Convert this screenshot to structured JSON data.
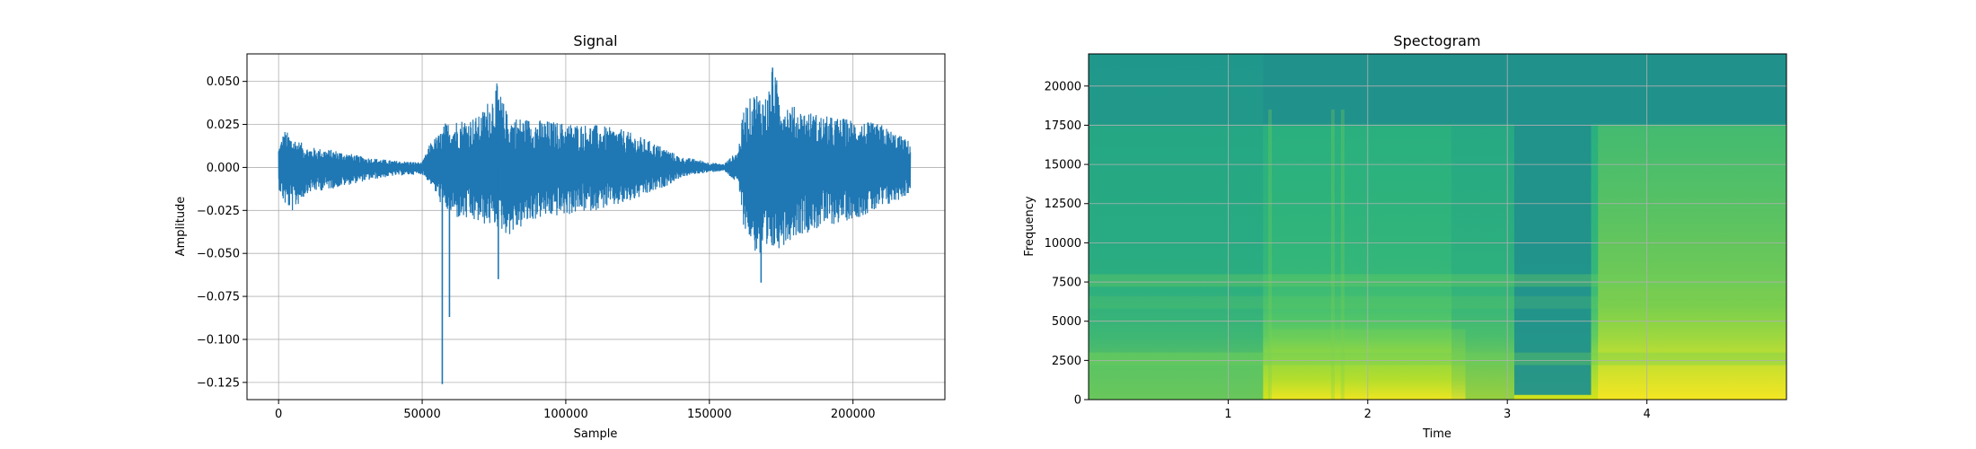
{
  "chart_data": [
    {
      "type": "line",
      "title": "Signal",
      "xlabel": "Sample",
      "ylabel": "Amplitude",
      "xlim": [
        -11000,
        232000
      ],
      "ylim": [
        -0.135,
        0.066
      ],
      "grid": true,
      "color": "#1f77b4",
      "x_ticks": [
        0,
        50000,
        100000,
        150000,
        200000
      ],
      "x_tick_labels": [
        "0",
        "50000",
        "100000",
        "150000",
        "200000"
      ],
      "y_ticks": [
        0.05,
        0.025,
        0.0,
        -0.025,
        -0.05,
        -0.075,
        -0.1,
        -0.125
      ],
      "y_tick_labels": [
        "0.050",
        "0.025",
        "0.000",
        "−0.025",
        "−0.050",
        "−0.075",
        "−0.100",
        "−0.125"
      ],
      "envelope": {
        "x": [
          0,
          2000,
          5000,
          10000,
          20000,
          30000,
          40000,
          50000,
          53000,
          56000,
          58000,
          62000,
          70000,
          76000,
          80000,
          90000,
          100000,
          110000,
          120000,
          130000,
          136000,
          140000,
          145000,
          150000,
          155000,
          160000,
          162000,
          166000,
          170000,
          172000,
          176000,
          180000,
          190000,
          200000,
          210000,
          220000
        ],
        "upper": [
          0.012,
          0.022,
          0.018,
          0.012,
          0.01,
          0.006,
          0.004,
          0.003,
          0.015,
          0.02,
          0.026,
          0.028,
          0.03,
          0.049,
          0.03,
          0.028,
          0.026,
          0.025,
          0.022,
          0.015,
          0.01,
          0.006,
          0.005,
          0.003,
          0.002,
          0.01,
          0.035,
          0.045,
          0.042,
          0.058,
          0.04,
          0.035,
          0.03,
          0.028,
          0.025,
          0.015
        ],
        "lower": [
          -0.012,
          -0.022,
          -0.026,
          -0.015,
          -0.012,
          -0.008,
          -0.005,
          -0.004,
          -0.01,
          -0.02,
          -0.025,
          -0.03,
          -0.033,
          -0.035,
          -0.04,
          -0.03,
          -0.028,
          -0.025,
          -0.022,
          -0.015,
          -0.01,
          -0.006,
          -0.004,
          -0.003,
          -0.002,
          -0.01,
          -0.035,
          -0.05,
          -0.06,
          -0.05,
          -0.045,
          -0.04,
          -0.035,
          -0.03,
          -0.025,
          -0.015
        ]
      },
      "spikes": [
        {
          "x": 57000,
          "y": -0.126
        },
        {
          "x": 59500,
          "y": -0.087
        },
        {
          "x": 76500,
          "y": -0.065
        },
        {
          "x": 168000,
          "y": -0.067
        },
        {
          "x": 172000,
          "y": 0.058
        }
      ]
    },
    {
      "type": "heatmap",
      "title": "Spectogram",
      "xlabel": "Time",
      "ylabel": "Frequency",
      "xlim": [
        0.0,
        5.0
      ],
      "ylim": [
        0,
        22050
      ],
      "grid": true,
      "colormap": "viridis",
      "x_ticks": [
        1,
        2,
        3,
        4
      ],
      "x_tick_labels": [
        "1",
        "2",
        "3",
        "4"
      ],
      "y_ticks": [
        0,
        2500,
        5000,
        7500,
        10000,
        12500,
        15000,
        17500,
        20000
      ],
      "y_tick_labels": [
        "0",
        "2500",
        "5000",
        "7500",
        "10000",
        "12500",
        "15000",
        "17500",
        "20000"
      ]
    }
  ]
}
